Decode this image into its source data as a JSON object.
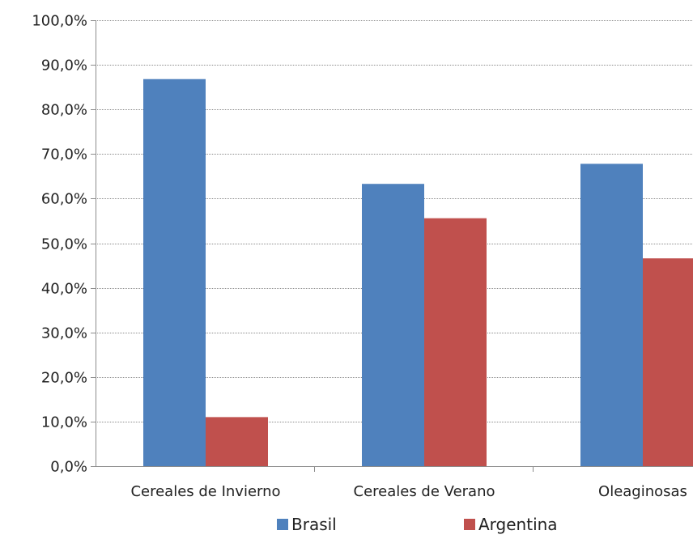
{
  "chart_data": {
    "type": "bar",
    "categories": [
      "Cereales de Invierno",
      "Cereales de Verano",
      "Oleaginosas"
    ],
    "series": [
      {
        "name": "Brasil",
        "values": [
          86.8,
          63.3,
          67.8
        ],
        "color": "#4F81BD"
      },
      {
        "name": "Argentina",
        "values": [
          11.0,
          55.6,
          46.6
        ],
        "color": "#C0504D"
      }
    ],
    "ylim": [
      0,
      100
    ],
    "yticks": [
      0,
      10,
      20,
      30,
      40,
      50,
      60,
      70,
      80,
      90,
      100
    ],
    "ytick_labels": [
      "0,0%",
      "10,0%",
      "20,0%",
      "30,0%",
      "40,0%",
      "50,0%",
      "60,0%",
      "70,0%",
      "80,0%",
      "90,0%",
      "100,0%"
    ],
    "grid": true,
    "legend_position": "bottom",
    "title": "",
    "xlabel": "",
    "ylabel": ""
  }
}
